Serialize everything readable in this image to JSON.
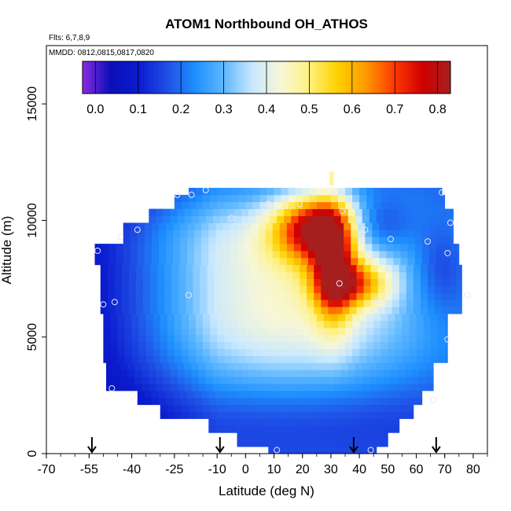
{
  "chart_data": {
    "type": "heatmap",
    "title": "ATOM1 Northbound OH_ATHOS",
    "annotations": [
      "Flts: 6,7,8,9",
      "MMDD: 0812,0815,0817,0820"
    ],
    "xlabel": "Latitude (deg N)",
    "ylabel": "Altitude (m)",
    "xlim": [
      -70,
      85
    ],
    "ylim": [
      0,
      17500
    ],
    "x_ticks": [
      "-70",
      "-55",
      "-40",
      "-25",
      "-10",
      "0",
      "10",
      "20",
      "30",
      "40",
      "50",
      "60",
      "70",
      "80"
    ],
    "y_ticks": [
      "0",
      "5000",
      "10000",
      "15000"
    ],
    "colorbar": {
      "range": [
        -0.03,
        0.83
      ],
      "ticks": [
        "0.0",
        "0.1",
        "0.2",
        "0.3",
        "0.4",
        "0.5",
        "0.6",
        "0.7",
        "0.8"
      ],
      "colors": [
        "#8a2be2",
        "#0a0fb8",
        "#0b1ccf",
        "#1f4fe6",
        "#1e90ff",
        "#5fb8ff",
        "#c8e8ff",
        "#f7f7d8",
        "#fff080",
        "#ffd200",
        "#ff9a00",
        "#ff3a00",
        "#d00000",
        "#a51f1f"
      ]
    },
    "field_description": "OH mixing ratio curtain vs latitude and altitude; maximum (~0.7) near 20-35N at 7-11 km",
    "flight_markers_lat": [
      -54,
      -9,
      38,
      67
    ],
    "obs_points": [
      {
        "x": -52,
        "y": 8700
      },
      {
        "x": -50,
        "y": 6400
      },
      {
        "x": -46,
        "y": 6500
      },
      {
        "x": -44,
        "y": 9300
      },
      {
        "x": -47,
        "y": 2800
      },
      {
        "x": -38,
        "y": 9600
      },
      {
        "x": -24,
        "y": 11100
      },
      {
        "x": -19,
        "y": 11100
      },
      {
        "x": -14,
        "y": 11300
      },
      {
        "x": -20,
        "y": 6800
      },
      {
        "x": -5,
        "y": 10100
      },
      {
        "x": 0,
        "y": 6700
      },
      {
        "x": 8,
        "y": 10700
      },
      {
        "x": 19,
        "y": 10700
      },
      {
        "x": 34,
        "y": 10400
      },
      {
        "x": 28,
        "y": 5100
      },
      {
        "x": 33,
        "y": 7300
      },
      {
        "x": 42,
        "y": 9600
      },
      {
        "x": 46,
        "y": 6600
      },
      {
        "x": 51,
        "y": 9200
      },
      {
        "x": 64,
        "y": 9100
      },
      {
        "x": 69,
        "y": 11200
      },
      {
        "x": 71,
        "y": 8600
      },
      {
        "x": 72,
        "y": 9900
      },
      {
        "x": 78,
        "y": 6800
      },
      {
        "x": 71,
        "y": 4900
      },
      {
        "x": 66,
        "y": 2300
      },
      {
        "x": 11,
        "y": 150
      },
      {
        "x": 44,
        "y": 150
      }
    ]
  }
}
